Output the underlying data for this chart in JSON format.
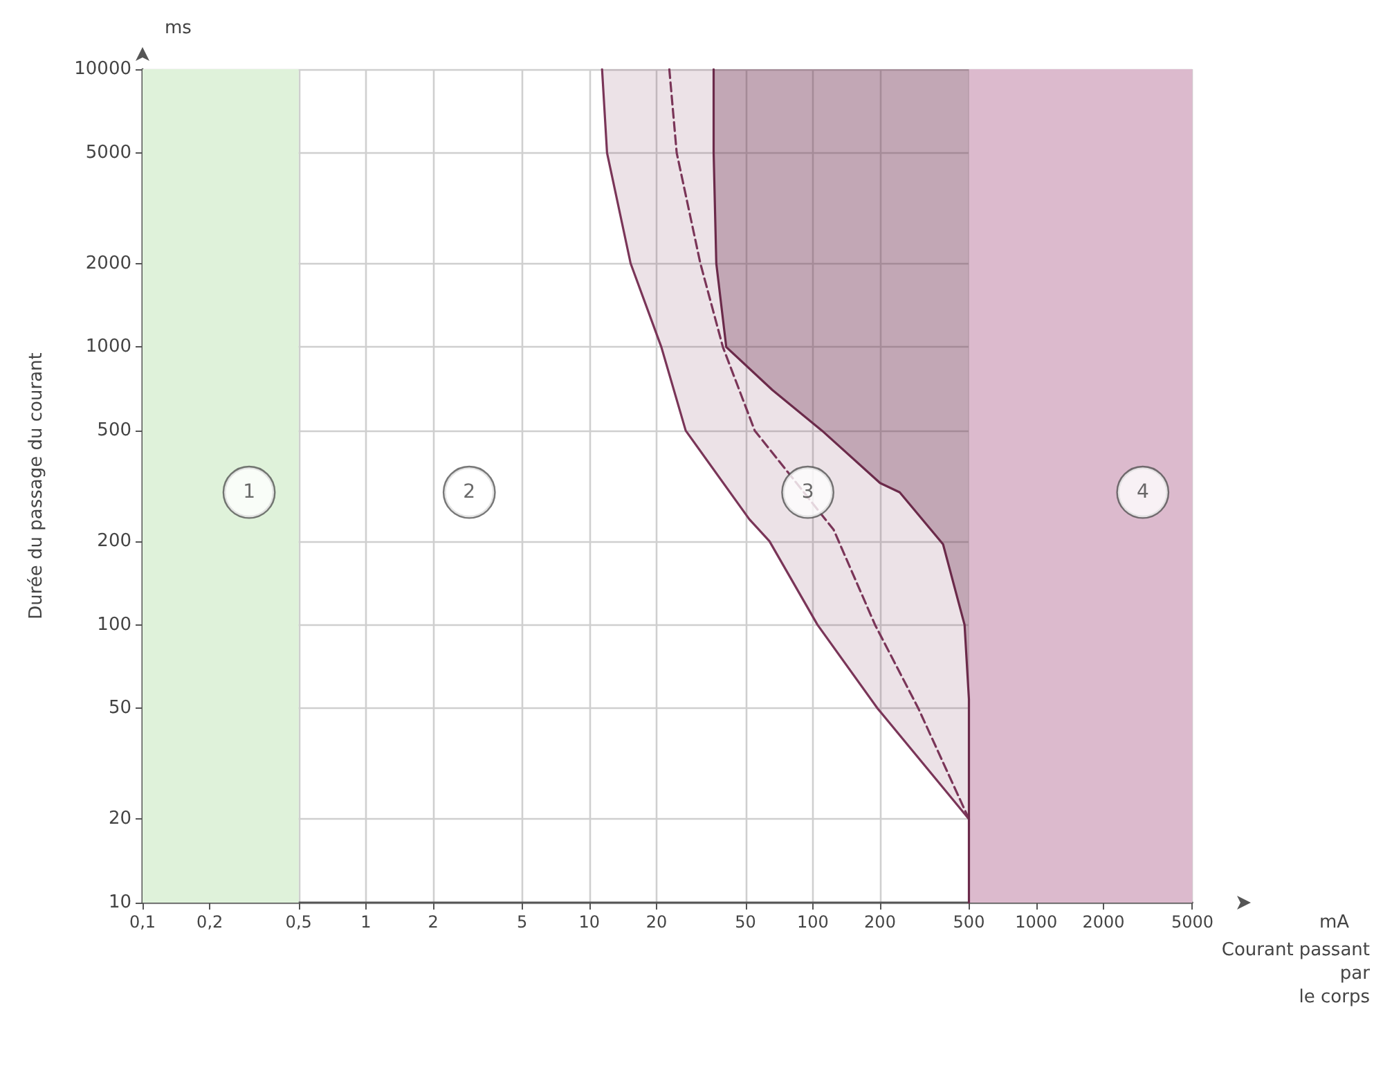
{
  "chart_data": {
    "type": "line",
    "xlabel": "Courant passant par le corps",
    "ylabel": "Durée du passage du courant",
    "log": "xy",
    "grid": true,
    "marker": "none",
    "xlim": [
      0.1,
      5000
    ],
    "ylim": [
      10,
      10000
    ],
    "xticks": [
      {
        "value": 0.1,
        "label": "0,1"
      },
      {
        "value": 0.2,
        "label": "0,2"
      },
      {
        "value": 0.5,
        "label": "0,5"
      },
      1,
      2,
      5,
      10,
      20,
      50,
      100,
      200,
      500,
      1000,
      2000,
      5000
    ],
    "yticks": [
      10,
      20,
      50,
      100,
      200,
      500,
      1000,
      2000,
      5000,
      10000
    ],
    "series": [
      {
        "color": "#7a3558",
        "x": [
          11.4,
          12,
          15.3,
          21,
          27,
          52,
          64,
          105,
          195,
          500
        ],
        "values": [
          10000,
          5000,
          2000,
          1000,
          500,
          240,
          200,
          100,
          50,
          20
        ],
        "lower": [
          10000,
          5000,
          2000,
          1000,
          500,
          240,
          200,
          100,
          50,
          20
        ],
        "upper": [
          10000,
          10000,
          10000,
          10000,
          10000,
          10000,
          10000,
          10000,
          10000,
          10000
        ]
      },
      {
        "color": "#7a3558",
        "line_style": "dashed",
        "x": [
          22.8,
          24.6,
          31.4,
          39.6,
          55,
          124,
          190,
          297,
          500
        ],
        "values": [
          10000,
          5000,
          2000,
          1000,
          500,
          220,
          100,
          50,
          20
        ]
      },
      {
        "color": "#6b2a4a",
        "x": [
          36,
          36,
          37,
          41,
          66,
          110,
          200,
          245,
          383,
          478,
          500,
          500,
          500
        ],
        "values": [
          10000,
          5000,
          2000,
          1000,
          700,
          500,
          324,
          300,
          195,
          100,
          54,
          20,
          10
        ],
        "lower": [
          10000,
          5000,
          2000,
          1000,
          700,
          500,
          324,
          300,
          195,
          100,
          54,
          20,
          10
        ],
        "upper": [
          10000,
          10000,
          10000,
          10000,
          10000,
          10000,
          10000,
          10000,
          10000,
          10000,
          10000,
          10000,
          10000
        ]
      }
    ],
    "bands": [
      {
        "axis": "x",
        "from": 0.1,
        "to": 0.5,
        "color": "#dff2da"
      },
      {
        "axis": "x",
        "from": 500,
        "to": 5000,
        "color": "#dcbacd"
      }
    ],
    "annotations": [
      "ms",
      "mA",
      {
        "text": "1",
        "x": 0.3,
        "y": 300
      },
      {
        "text": "2",
        "x": 2.9,
        "y": 300
      },
      {
        "text": "3",
        "x": 95,
        "y": 300
      },
      {
        "text": "4",
        "x": 3000,
        "y": 300
      }
    ]
  }
}
